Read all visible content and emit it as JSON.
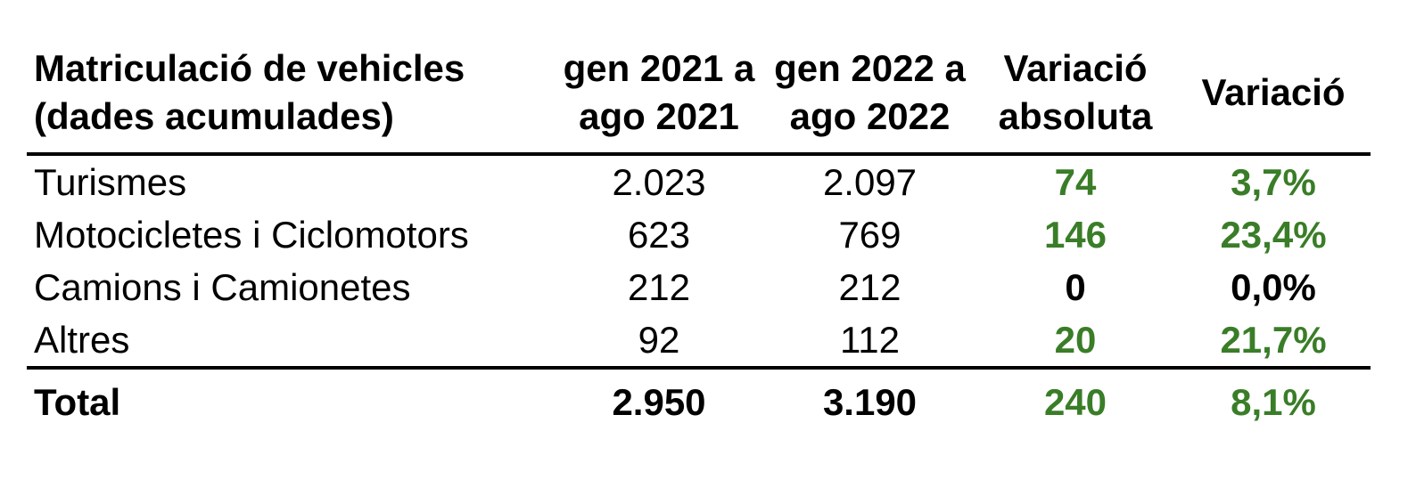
{
  "colors": {
    "positive_green": "#3a7d28",
    "text_black": "#000000",
    "rule_black": "#000000"
  },
  "header": {
    "columns": [
      {
        "line1": "Matriculació de vehicles",
        "line2": "(dades acumulades)"
      },
      {
        "line1": "gen 2021 a",
        "line2": "ago 2021"
      },
      {
        "line1": "gen 2022 a",
        "line2": "ago 2022"
      },
      {
        "line1": "Variació",
        "line2": "absoluta"
      },
      {
        "line1": "Variació",
        "line2": ""
      }
    ]
  },
  "rows": [
    {
      "label": "Turismes",
      "period1": "2.023",
      "period2": "2.097",
      "abs": "74",
      "pct": "3,7%",
      "positive": true
    },
    {
      "label": "Motocicletes i Ciclomotors",
      "period1": "623",
      "period2": "769",
      "abs": "146",
      "pct": "23,4%",
      "positive": true
    },
    {
      "label": "Camions i Camionetes",
      "period1": "212",
      "period2": "212",
      "abs": "0",
      "pct": "0,0%",
      "positive": false
    },
    {
      "label": "Altres",
      "period1": "92",
      "period2": "112",
      "abs": "20",
      "pct": "21,7%",
      "positive": true
    }
  ],
  "total": {
    "label": "Total",
    "period1": "2.950",
    "period2": "3.190",
    "abs": "240",
    "pct": "8,1%",
    "positive": true
  },
  "chart_data": {
    "type": "table",
    "title": "Matriculació de vehicles (dades acumulades)",
    "columns": [
      "Matriculació de vehicles (dades acumulades)",
      "gen 2021 a ago 2021",
      "gen 2022 a ago 2022",
      "Variació absoluta",
      "Variació"
    ],
    "rows": [
      [
        "Turismes",
        2023,
        2097,
        74,
        "3,7%"
      ],
      [
        "Motocicletes i Ciclomotors",
        623,
        769,
        146,
        "23,4%"
      ],
      [
        "Camions i Camionetes",
        212,
        212,
        0,
        "0,0%"
      ],
      [
        "Altres",
        92,
        112,
        20,
        "21,7%"
      ],
      [
        "Total",
        2950,
        3190,
        240,
        "8,1%"
      ]
    ],
    "notes": "Variació absoluta and Variació columns are bold; positive values rendered in green (#3a7d28), zero values in black. Thousands separator is a period, decimal separator is a comma (Catalan locale)."
  }
}
